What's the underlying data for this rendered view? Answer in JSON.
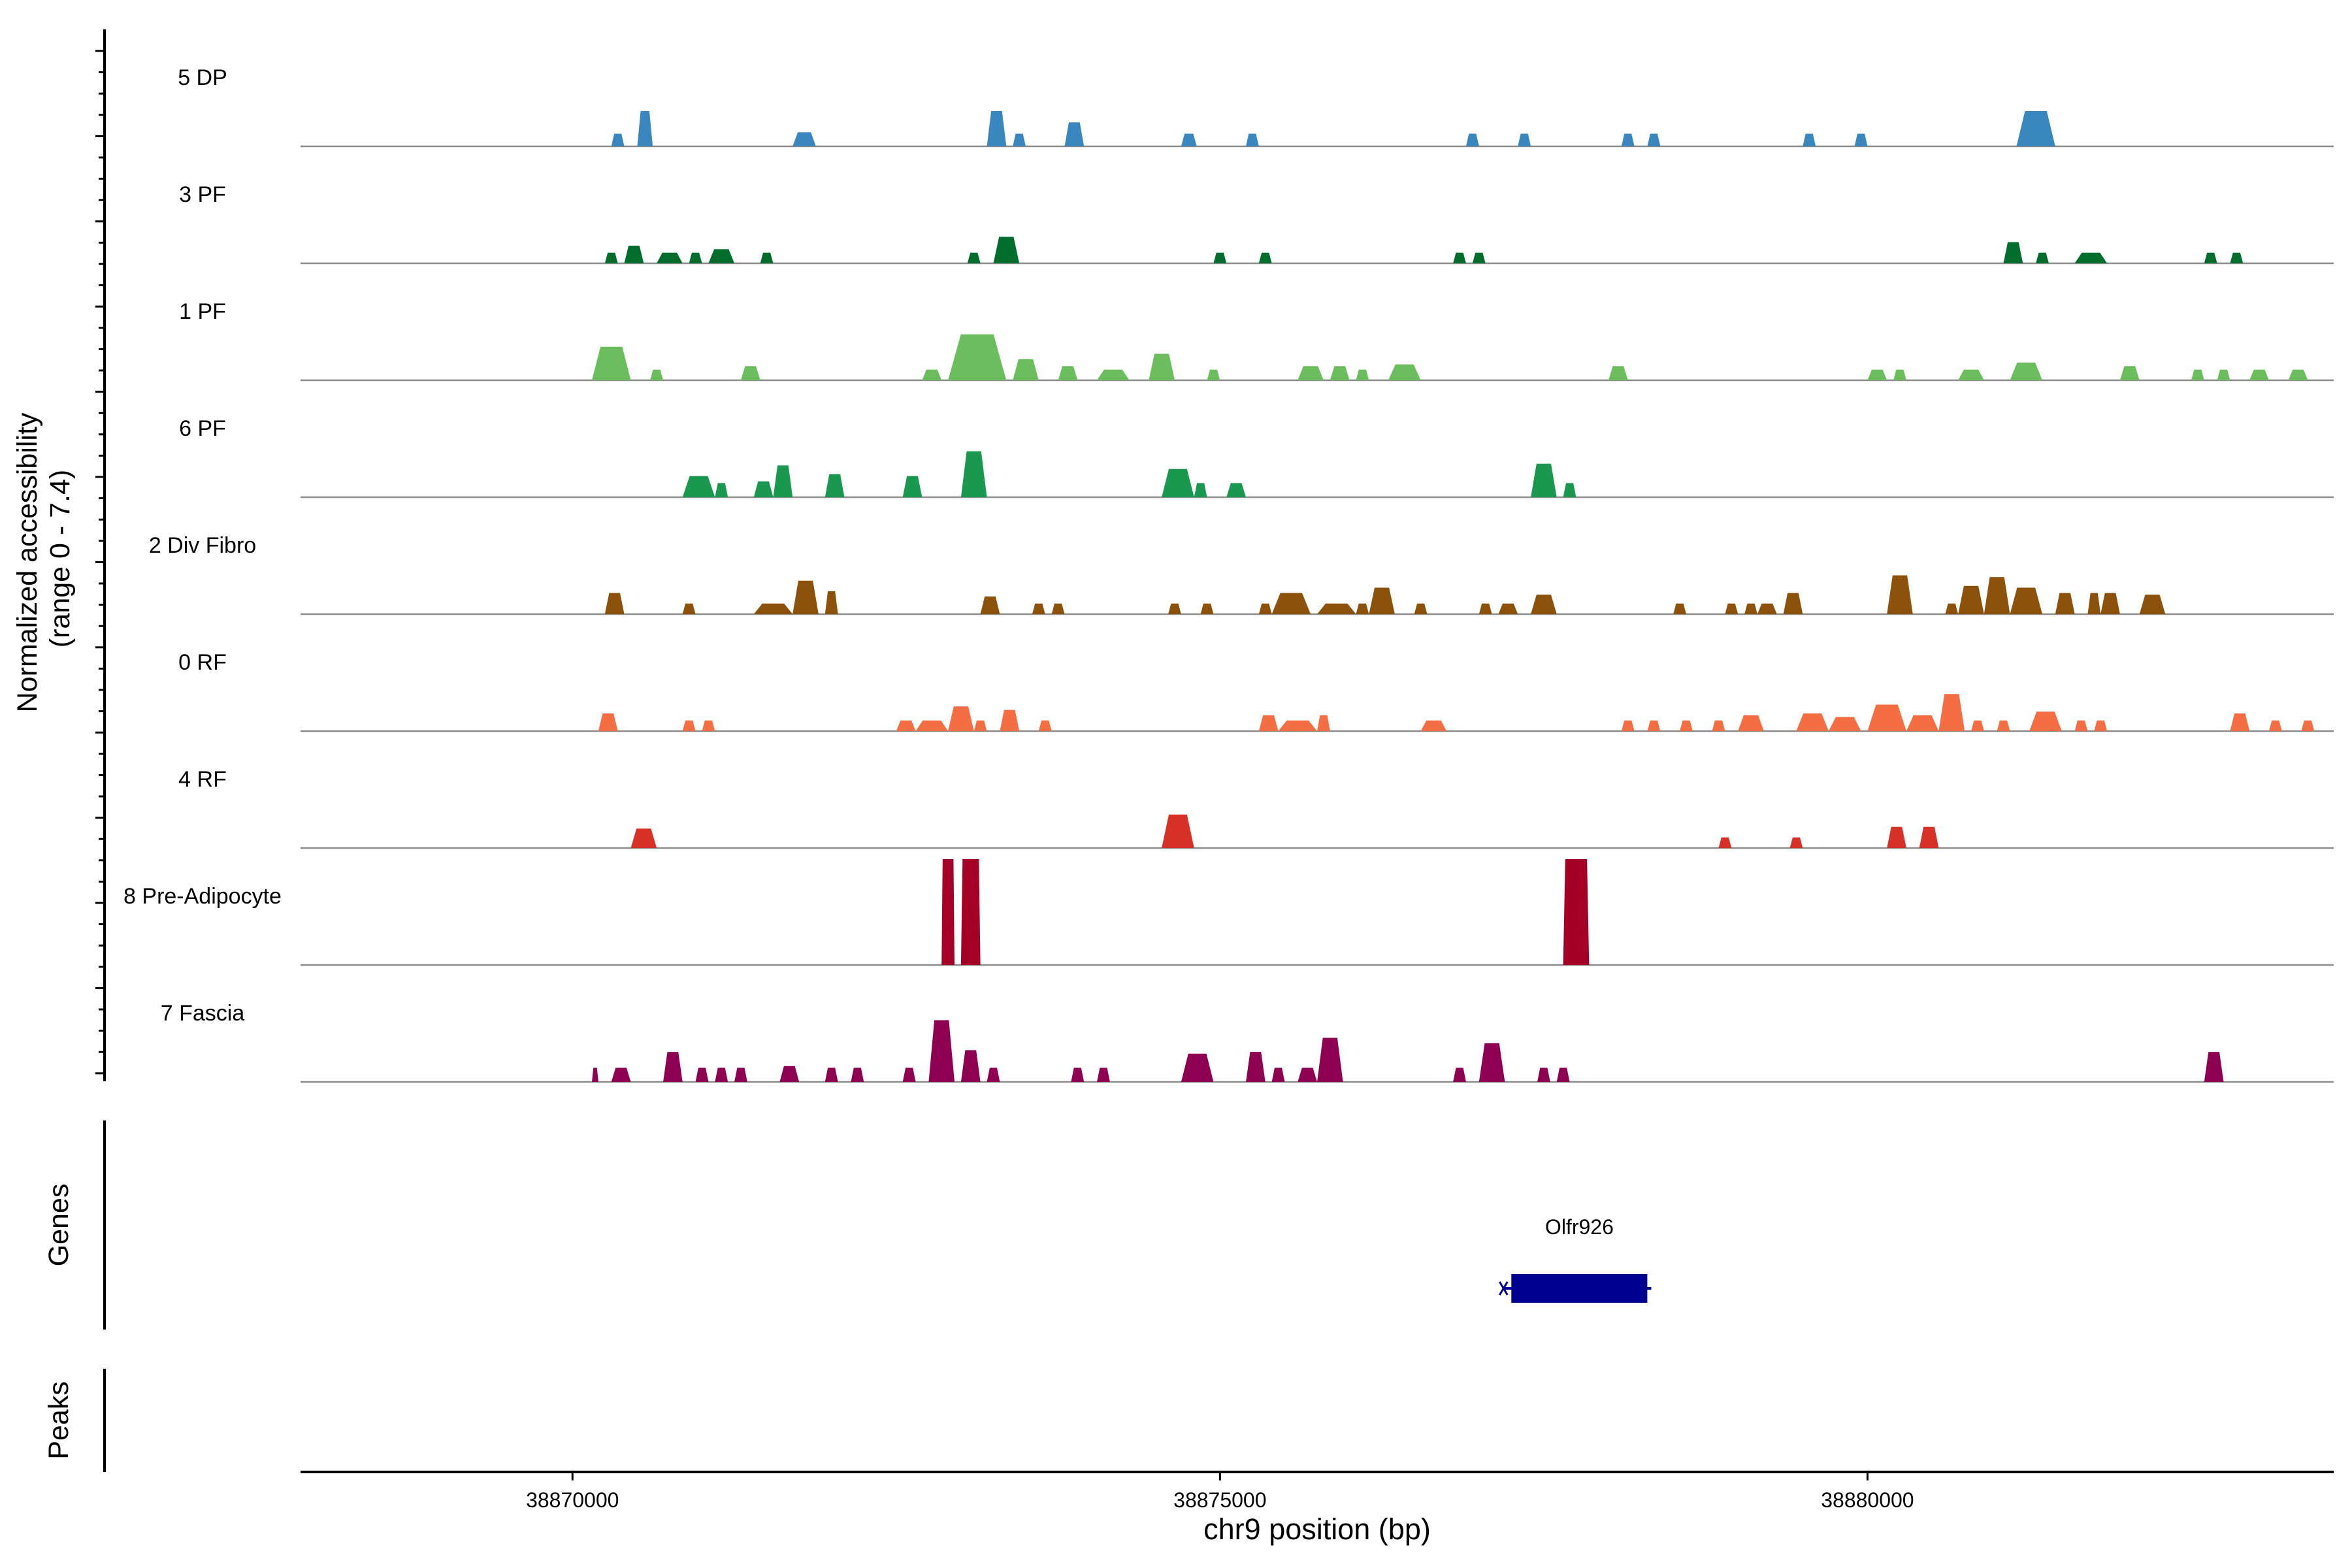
{
  "chart_data": {
    "type": "area",
    "title": "",
    "ylabel_line1": "Normalized accessibility",
    "ylabel_line2": "(range 0 - 7.4)",
    "xlabel": "chr9 position (bp)",
    "y_range": [
      0,
      7.4
    ],
    "x_range": [
      38867900,
      38883600
    ],
    "x_ticks": [
      {
        "value": 38870000,
        "label": "38870000"
      },
      {
        "value": 38875000,
        "label": "38875000"
      },
      {
        "value": 38880000,
        "label": "38880000"
      }
    ],
    "tracks": [
      {
        "name": "5 DP",
        "color": "#3a87c0",
        "peaks": [
          [
            38870300,
            38870400,
            0.36
          ],
          [
            38870500,
            38870620,
            1.0
          ],
          [
            38871700,
            38871880,
            0.4
          ],
          [
            38873200,
            38873350,
            1.0
          ],
          [
            38873400,
            38873500,
            0.36
          ],
          [
            38873800,
            38873950,
            0.68
          ],
          [
            38874700,
            38874820,
            0.36
          ],
          [
            38875200,
            38875300,
            0.36
          ],
          [
            38876900,
            38877000,
            0.36
          ],
          [
            38877300,
            38877400,
            0.36
          ],
          [
            38878100,
            38878200,
            0.36
          ],
          [
            38878300,
            38878400,
            0.36
          ],
          [
            38879500,
            38879600,
            0.36
          ],
          [
            38879900,
            38880000,
            0.36
          ],
          [
            38881150,
            38881450,
            1.0
          ]
        ]
      },
      {
        "name": "3 PF",
        "color": "#006d2c",
        "peaks": [
          [
            38870250,
            38870350,
            0.3
          ],
          [
            38870400,
            38870550,
            0.5
          ],
          [
            38870650,
            38870850,
            0.3
          ],
          [
            38870900,
            38871000,
            0.3
          ],
          [
            38871050,
            38871250,
            0.4
          ],
          [
            38871450,
            38871550,
            0.3
          ],
          [
            38873050,
            38873150,
            0.3
          ],
          [
            38873250,
            38873450,
            0.75
          ],
          [
            38874950,
            38875050,
            0.3
          ],
          [
            38875300,
            38875400,
            0.3
          ],
          [
            38876800,
            38876900,
            0.3
          ],
          [
            38876950,
            38877050,
            0.3
          ],
          [
            38881050,
            38881200,
            0.6
          ],
          [
            38881300,
            38881400,
            0.3
          ],
          [
            38881600,
            38881850,
            0.3
          ],
          [
            38882600,
            38882700,
            0.3
          ],
          [
            38882800,
            38882900,
            0.3
          ]
        ]
      },
      {
        "name": "1 PF",
        "color": "#6cbd5e",
        "peaks": [
          [
            38870150,
            38870450,
            0.95
          ],
          [
            38870600,
            38870700,
            0.3
          ],
          [
            38871300,
            38871450,
            0.4
          ],
          [
            38872700,
            38872850,
            0.3
          ],
          [
            38872900,
            38873350,
            1.3
          ],
          [
            38873400,
            38873600,
            0.6
          ],
          [
            38873750,
            38873900,
            0.4
          ],
          [
            38874050,
            38874300,
            0.3
          ],
          [
            38874450,
            38874650,
            0.75
          ],
          [
            38874900,
            38875000,
            0.3
          ],
          [
            38875600,
            38875800,
            0.4
          ],
          [
            38875850,
            38876000,
            0.4
          ],
          [
            38876050,
            38876150,
            0.3
          ],
          [
            38876300,
            38876550,
            0.45
          ],
          [
            38878000,
            38878150,
            0.4
          ],
          [
            38880000,
            38880150,
            0.3
          ],
          [
            38880200,
            38880300,
            0.3
          ],
          [
            38880700,
            38880900,
            0.3
          ],
          [
            38881100,
            38881350,
            0.5
          ],
          [
            38881950,
            38882100,
            0.4
          ],
          [
            38882500,
            38882600,
            0.3
          ],
          [
            38882700,
            38882800,
            0.3
          ],
          [
            38882950,
            38883100,
            0.3
          ],
          [
            38883250,
            38883400,
            0.3
          ]
        ]
      },
      {
        "name": "6 PF",
        "color": "#1a9850",
        "peaks": [
          [
            38870850,
            38871100,
            0.6
          ],
          [
            38871100,
            38871200,
            0.4
          ],
          [
            38871400,
            38871550,
            0.45
          ],
          [
            38871550,
            38871700,
            0.9
          ],
          [
            38871950,
            38872100,
            0.65
          ],
          [
            38872550,
            38872700,
            0.6
          ],
          [
            38873000,
            38873200,
            1.3
          ],
          [
            38874550,
            38874800,
            0.8
          ],
          [
            38874800,
            38874900,
            0.4
          ],
          [
            38875050,
            38875200,
            0.4
          ],
          [
            38877400,
            38877600,
            0.95
          ],
          [
            38877650,
            38877750,
            0.4
          ]
        ]
      },
      {
        "name": "2 Div Fibro",
        "color": "#8c510a",
        "peaks": [
          [
            38870250,
            38870400,
            0.6
          ],
          [
            38870850,
            38870950,
            0.3
          ],
          [
            38871400,
            38871700,
            0.3
          ],
          [
            38871700,
            38871900,
            0.95
          ],
          [
            38871950,
            38872050,
            0.65
          ],
          [
            38873150,
            38873300,
            0.5
          ],
          [
            38873550,
            38873650,
            0.3
          ],
          [
            38873700,
            38873800,
            0.3
          ],
          [
            38874600,
            38874700,
            0.3
          ],
          [
            38874850,
            38874950,
            0.3
          ],
          [
            38875300,
            38875400,
            0.3
          ],
          [
            38875400,
            38875700,
            0.6
          ],
          [
            38875750,
            38876050,
            0.3
          ],
          [
            38876050,
            38876150,
            0.3
          ],
          [
            38876150,
            38876350,
            0.75
          ],
          [
            38876500,
            38876600,
            0.3
          ],
          [
            38877000,
            38877100,
            0.3
          ],
          [
            38877150,
            38877300,
            0.3
          ],
          [
            38877400,
            38877600,
            0.55
          ],
          [
            38878500,
            38878600,
            0.3
          ],
          [
            38878900,
            38879000,
            0.3
          ],
          [
            38879050,
            38879150,
            0.3
          ],
          [
            38879150,
            38879300,
            0.3
          ],
          [
            38879350,
            38879500,
            0.6
          ],
          [
            38880150,
            38880350,
            1.1
          ],
          [
            38880600,
            38880700,
            0.3
          ],
          [
            38880700,
            38880900,
            0.8
          ],
          [
            38880900,
            38881100,
            1.05
          ],
          [
            38881100,
            38881350,
            0.75
          ],
          [
            38881450,
            38881600,
            0.6
          ],
          [
            38881700,
            38881800,
            0.6
          ],
          [
            38881800,
            38881950,
            0.6
          ],
          [
            38882100,
            38882300,
            0.55
          ]
        ]
      },
      {
        "name": "0 RF",
        "color": "#f46d43",
        "peaks": [
          [
            38870200,
            38870350,
            0.5
          ],
          [
            38870850,
            38870950,
            0.3
          ],
          [
            38871000,
            38871100,
            0.3
          ],
          [
            38872500,
            38872650,
            0.3
          ],
          [
            38872650,
            38872900,
            0.3
          ],
          [
            38872900,
            38873100,
            0.7
          ],
          [
            38873100,
            38873200,
            0.3
          ],
          [
            38873300,
            38873450,
            0.6
          ],
          [
            38873600,
            38873700,
            0.3
          ],
          [
            38875300,
            38875450,
            0.45
          ],
          [
            38875450,
            38875750,
            0.3
          ],
          [
            38875750,
            38875850,
            0.45
          ],
          [
            38876550,
            38876750,
            0.3
          ],
          [
            38878100,
            38878200,
            0.3
          ],
          [
            38878300,
            38878400,
            0.3
          ],
          [
            38878550,
            38878650,
            0.3
          ],
          [
            38878800,
            38878900,
            0.3
          ],
          [
            38879000,
            38879200,
            0.45
          ],
          [
            38879450,
            38879700,
            0.5
          ],
          [
            38879700,
            38879950,
            0.4
          ],
          [
            38880000,
            38880300,
            0.75
          ],
          [
            38880300,
            38880550,
            0.45
          ],
          [
            38880550,
            38880750,
            1.05
          ],
          [
            38880800,
            38880900,
            0.3
          ],
          [
            38881000,
            38881100,
            0.3
          ],
          [
            38881250,
            38881500,
            0.55
          ],
          [
            38881600,
            38881700,
            0.3
          ],
          [
            38881750,
            38881850,
            0.3
          ],
          [
            38882800,
            38882950,
            0.5
          ],
          [
            38883100,
            38883200,
            0.3
          ],
          [
            38883350,
            38883450,
            0.3
          ]
        ]
      },
      {
        "name": "4 RF",
        "color": "#d73027",
        "peaks": [
          [
            38870450,
            38870650,
            0.55
          ],
          [
            38874550,
            38874800,
            0.95
          ],
          [
            38878850,
            38878950,
            0.3
          ],
          [
            38879400,
            38879500,
            0.3
          ],
          [
            38880150,
            38880300,
            0.6
          ],
          [
            38880400,
            38880550,
            0.6
          ]
        ]
      },
      {
        "name": "8 Pre-Adipocyte",
        "color": "#a50026",
        "peaks": [
          [
            38872850,
            38872950,
            3.0
          ],
          [
            38873000,
            38873150,
            3.0
          ],
          [
            38877650,
            38877850,
            3.0
          ]
        ]
      },
      {
        "name": "7 Fascia",
        "color": "#8e0152",
        "peaks": [
          [
            38870150,
            38870200,
            0.4
          ],
          [
            38870300,
            38870450,
            0.4
          ],
          [
            38870700,
            38870850,
            0.85
          ],
          [
            38870950,
            38871050,
            0.4
          ],
          [
            38871100,
            38871200,
            0.4
          ],
          [
            38871250,
            38871350,
            0.4
          ],
          [
            38871600,
            38871750,
            0.45
          ],
          [
            38871950,
            38872050,
            0.4
          ],
          [
            38872150,
            38872250,
            0.4
          ],
          [
            38872550,
            38872650,
            0.4
          ],
          [
            38872750,
            38872950,
            1.75
          ],
          [
            38873000,
            38873150,
            0.9
          ],
          [
            38873200,
            38873300,
            0.4
          ],
          [
            38873850,
            38873950,
            0.4
          ],
          [
            38874050,
            38874150,
            0.4
          ],
          [
            38874700,
            38874950,
            0.8
          ],
          [
            38875200,
            38875350,
            0.85
          ],
          [
            38875400,
            38875500,
            0.4
          ],
          [
            38875600,
            38875750,
            0.4
          ],
          [
            38875750,
            38875950,
            1.25
          ],
          [
            38876800,
            38876900,
            0.4
          ],
          [
            38877000,
            38877200,
            1.1
          ],
          [
            38877450,
            38877550,
            0.4
          ],
          [
            38877600,
            38877700,
            0.4
          ],
          [
            38882600,
            38882750,
            0.85
          ]
        ]
      }
    ],
    "genes": [
      {
        "name": "Olfr926",
        "start": 38877250,
        "end": 38878300,
        "strand": "-"
      }
    ],
    "panel_labels": {
      "genes": "Genes",
      "peaks": "Peaks"
    },
    "gene_color": "#000090",
    "baseline_color": "#8c8c8c"
  }
}
